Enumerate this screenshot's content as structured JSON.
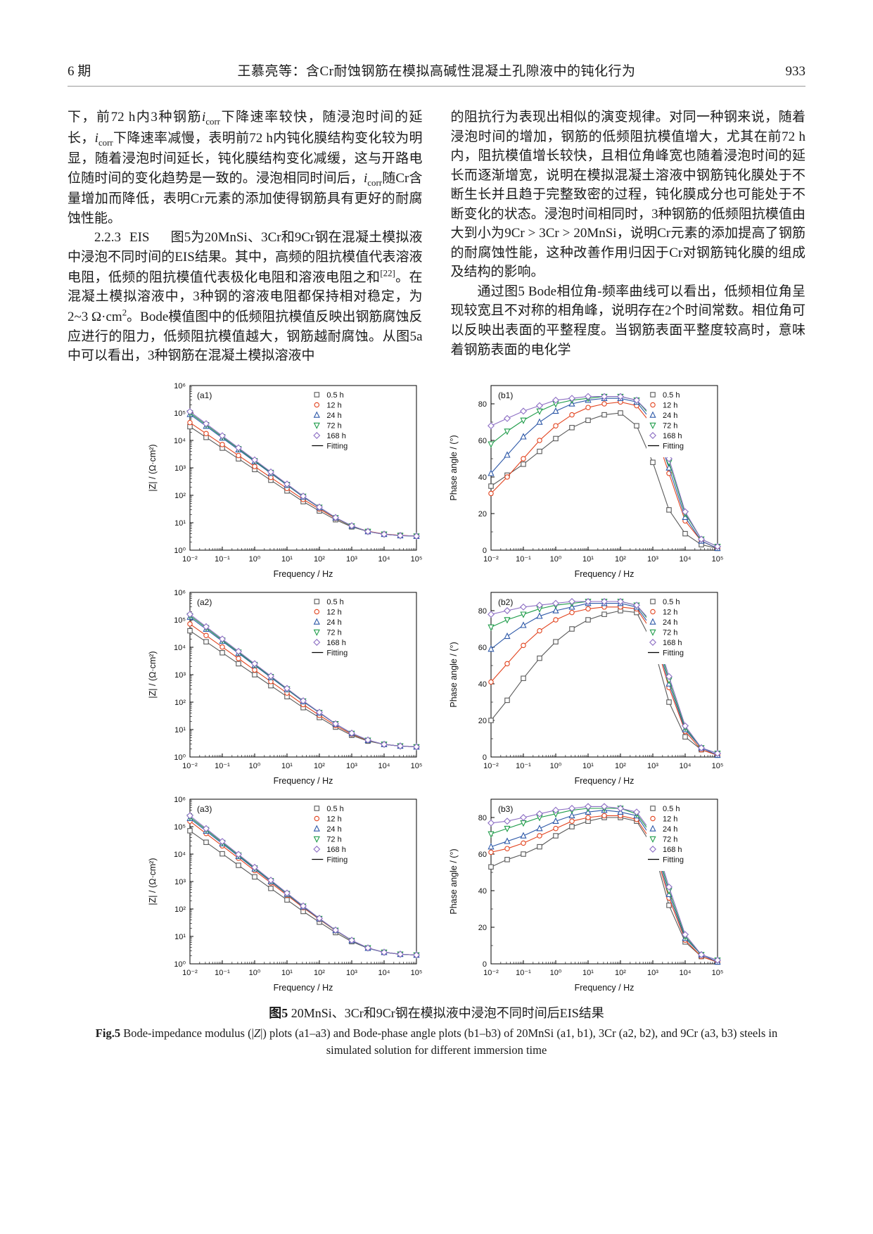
{
  "page": {
    "header": {
      "issue": "6 期",
      "title": "王慕亮等：含Cr耐蚀钢筋在模拟高碱性混凝土孔隙液中的钝化行为",
      "page_number": "933"
    },
    "body": {
      "left_column": {
        "p1": "下，前72 h内3种钢筋<i>i</i><sub>corr</sub>下降速率较快，随浸泡时间的延长，<i>i</i><sub>corr</sub>下降速率减慢，表明前72 h内钝化膜结构变化较为明显，随着浸泡时间延长，钝化膜结构变化减缓，这与开路电位随时间的变化趋势是一致的。浸泡相同时间后，<i>i</i><sub>corr</sub>随Cr含量增加而降低，表明Cr元素的添加使得钢筋具有更好的耐腐蚀性能。",
        "section_number": "2.2.3",
        "section_title": "EIS",
        "p2": "图5为20MnSi、3Cr和9Cr钢在混凝土模拟液中浸泡不同时间的EIS结果。其中，高频的阻抗模值代表溶液电阻，低频的阻抗模值代表极化电阻和溶液电阻之和<sup>[22]</sup>。在混凝土模拟溶液中，3种钢的溶液电阻都保持相对稳定，为2~3 Ω·cm<sup>2</sup>。Bode模值图中的低频阻抗模值反映出钢筋腐蚀反应进行的阻力，低频阻抗模值越大，钢筋越耐腐蚀。从图5a中可以看出，3种钢筋在混凝土模拟溶液中"
      },
      "right_column": {
        "p3": "的阻抗行为表现出相似的演变规律。对同一种钢来说，随着浸泡时间的增加，钢筋的低频阻抗模值增大，尤其在前72 h内，阻抗模值增长较快，且相位角峰宽也随着浸泡时间的延长而逐渐增宽，说明在模拟混凝土溶液中钢筋钝化膜处于不断生长并且趋于完整致密的过程，钝化膜成分也可能处于不断变化的状态。浸泡时间相同时，3种钢筋的低频阻抗模值由大到小为9Cr > 3Cr > 20MnSi，说明Cr元素的添加提高了钢筋的耐腐蚀性能，这种改善作用归因于Cr对钢筋钝化膜的组成及结构的影响。",
        "p4": "通过图5 Bode相位角-频率曲线可以看出，低频相位角呈现较宽且不对称的相角峰，说明存在2个时间常数。相位角可以反映出表面的平整程度。当钢筋表面平整度较高时，意味着钢筋表面的电化学"
      }
    },
    "figure": {
      "caption_zh_label": "图5",
      "caption_zh": "20MnSi、3Cr和9Cr钢在模拟液中浸泡不同时间后EIS结果",
      "caption_en_label": "Fig.5",
      "caption_en": "Bode-impedance modulus (|<i>Z</i>|) plots (a1–a3) and Bode-phase angle plots (b1–b3) of 20MnSi (a1, b1), 3Cr (a2, b2), and 9Cr (a3, b3) steels in simulated solution for different immersion time"
    }
  },
  "chart_data": [
    {
      "id": "a1",
      "panel": "(a1)",
      "type": "line",
      "steel": "20MnSi",
      "x_scale": "log",
      "y_scale": "log",
      "xlabel": "Frequency / Hz",
      "ylabel": "|Z| / (Ω·cm²)",
      "xlim": [
        -2,
        5
      ],
      "ylim": [
        0,
        6
      ],
      "x_ticks": [
        -2,
        -1,
        0,
        1,
        2,
        3,
        4,
        5
      ],
      "y_ticks": [
        0,
        1,
        2,
        3,
        4,
        5,
        6
      ],
      "x_values_are": "log10(frequency, Hz)",
      "y_values_are": "log10(|Z|, ohm·cm2)",
      "x": [
        -2,
        -1.5,
        -1,
        -0.5,
        0,
        0.5,
        1,
        1.5,
        2,
        2.5,
        3,
        3.5,
        4,
        4.5,
        5
      ],
      "series": [
        {
          "name": "0.5 h",
          "marker": "square",
          "color": "#595959",
          "y": [
            4.5,
            4.11,
            3.72,
            3.33,
            2.94,
            2.55,
            2.16,
            1.77,
            1.43,
            1.11,
            0.85,
            0.68,
            0.58,
            0.54,
            0.51
          ]
        },
        {
          "name": "12 h",
          "marker": "circle",
          "color": "#e2431e",
          "y": [
            4.65,
            4.25,
            3.85,
            3.45,
            3.05,
            2.65,
            2.25,
            1.85,
            1.5,
            1.16,
            0.88,
            0.69,
            0.59,
            0.54,
            0.51
          ]
        },
        {
          "name": "24 h",
          "marker": "triangle-up",
          "color": "#2e59a8",
          "y": [
            4.95,
            4.52,
            4.09,
            3.66,
            3.23,
            2.8,
            2.37,
            1.94,
            1.55,
            1.18,
            0.88,
            0.68,
            0.58,
            0.53,
            0.51
          ]
        },
        {
          "name": "72 h",
          "marker": "triangle-down",
          "color": "#1f9c4a",
          "y": [
            5.0,
            4.57,
            4.13,
            3.7,
            3.26,
            2.83,
            2.39,
            1.96,
            1.56,
            1.18,
            0.88,
            0.68,
            0.58,
            0.53,
            0.51
          ]
        },
        {
          "name": "168 h",
          "marker": "diamond",
          "color": "#8d6fc4",
          "y": [
            5.05,
            4.61,
            4.17,
            3.73,
            3.29,
            2.85,
            2.41,
            1.97,
            1.57,
            1.19,
            0.89,
            0.68,
            0.58,
            0.53,
            0.51
          ]
        }
      ],
      "fitting_label": "Fitting"
    },
    {
      "id": "b1",
      "panel": "(b1)",
      "type": "line",
      "steel": "20MnSi",
      "x_scale": "log",
      "y_scale": "linear",
      "xlabel": "Frequency / Hz",
      "ylabel": "Phase angle / (°)",
      "xlim": [
        -2,
        5
      ],
      "ylim": [
        0,
        90
      ],
      "x_ticks": [
        -2,
        -1,
        0,
        1,
        2,
        3,
        4,
        5
      ],
      "y_ticks": [
        0,
        20,
        40,
        60,
        80
      ],
      "x_values_are": "log10(frequency, Hz)",
      "y_values_are": "phase angle, deg",
      "x": [
        -2,
        -1.5,
        -1,
        -0.5,
        0,
        0.5,
        1,
        1.5,
        2,
        2.5,
        3,
        3.5,
        4,
        4.5,
        5
      ],
      "series": [
        {
          "name": "0.5 h",
          "marker": "square",
          "color": "#595959",
          "y": [
            35,
            41,
            47,
            54,
            61,
            67,
            71,
            74,
            75,
            68,
            48,
            22,
            9,
            3,
            1
          ]
        },
        {
          "name": "12 h",
          "marker": "circle",
          "color": "#e2431e",
          "y": [
            31,
            40,
            50,
            60,
            68,
            74,
            78,
            80,
            81,
            79,
            68,
            42,
            16,
            5,
            1
          ]
        },
        {
          "name": "24 h",
          "marker": "triangle-up",
          "color": "#2e59a8",
          "y": [
            42,
            52,
            62,
            70,
            76,
            80,
            82,
            83,
            83,
            81,
            70,
            45,
            18,
            5,
            1
          ]
        },
        {
          "name": "72 h",
          "marker": "triangle-down",
          "color": "#1f9c4a",
          "y": [
            58,
            65,
            71,
            76,
            80,
            82,
            83,
            84,
            84,
            82,
            72,
            48,
            20,
            6,
            2
          ]
        },
        {
          "name": "168 h",
          "marker": "diamond",
          "color": "#8d6fc4",
          "y": [
            68,
            72,
            76,
            79,
            82,
            83,
            84,
            84,
            84,
            82,
            73,
            50,
            21,
            6,
            2
          ]
        }
      ],
      "fitting_label": "Fitting"
    },
    {
      "id": "a2",
      "panel": "(a2)",
      "type": "line",
      "steel": "3Cr",
      "x_scale": "log",
      "y_scale": "log",
      "xlabel": "Frequency / Hz",
      "ylabel": "|Z| / (Ω·cm²)",
      "xlim": [
        -2,
        5
      ],
      "ylim": [
        0,
        6
      ],
      "x_ticks": [
        -2,
        -1,
        0,
        1,
        2,
        3,
        4,
        5
      ],
      "y_ticks": [
        0,
        1,
        2,
        3,
        4,
        5,
        6
      ],
      "x_values_are": "log10(frequency, Hz)",
      "y_values_are": "log10(|Z|, ohm·cm2)",
      "x": [
        -2,
        -1.5,
        -1,
        -0.5,
        0,
        0.5,
        1,
        1.5,
        2,
        2.5,
        3,
        3.5,
        4,
        4.5,
        5
      ],
      "series": [
        {
          "name": "0.5 h",
          "marker": "square",
          "color": "#595959",
          "y": [
            4.6,
            4.2,
            3.8,
            3.4,
            3.0,
            2.6,
            2.2,
            1.8,
            1.44,
            1.09,
            0.79,
            0.58,
            0.46,
            0.4,
            0.37
          ]
        },
        {
          "name": "12 h",
          "marker": "circle",
          "color": "#e2431e",
          "y": [
            4.85,
            4.43,
            4.01,
            3.59,
            3.17,
            2.75,
            2.33,
            1.91,
            1.52,
            1.15,
            0.83,
            0.6,
            0.46,
            0.4,
            0.37
          ]
        },
        {
          "name": "24 h",
          "marker": "triangle-up",
          "color": "#2e59a8",
          "y": [
            5.1,
            4.66,
            4.22,
            3.78,
            3.34,
            2.9,
            2.46,
            2.02,
            1.61,
            1.2,
            0.86,
            0.61,
            0.46,
            0.4,
            0.37
          ]
        },
        {
          "name": "72 h",
          "marker": "triangle-down",
          "color": "#1f9c4a",
          "y": [
            5.15,
            4.71,
            4.26,
            3.82,
            3.37,
            2.93,
            2.48,
            2.04,
            1.62,
            1.21,
            0.86,
            0.61,
            0.46,
            0.4,
            0.37
          ]
        },
        {
          "name": "168 h",
          "marker": "diamond",
          "color": "#8d6fc4",
          "y": [
            5.2,
            4.75,
            4.3,
            3.85,
            3.4,
            2.95,
            2.5,
            2.05,
            1.63,
            1.21,
            0.87,
            0.62,
            0.46,
            0.4,
            0.37
          ]
        }
      ],
      "fitting_label": "Fitting"
    },
    {
      "id": "b2",
      "panel": "(b2)",
      "type": "line",
      "steel": "3Cr",
      "x_scale": "log",
      "y_scale": "linear",
      "xlabel": "Frequency / Hz",
      "ylabel": "Phase angle / (°)",
      "xlim": [
        -2,
        5
      ],
      "ylim": [
        0,
        90
      ],
      "x_ticks": [
        -2,
        -1,
        0,
        1,
        2,
        3,
        4,
        5
      ],
      "y_ticks": [
        0,
        20,
        40,
        60,
        80
      ],
      "x_values_are": "log10(frequency, Hz)",
      "y_values_are": "phase angle, deg",
      "x": [
        -2,
        -1.5,
        -1,
        -0.5,
        0,
        0.5,
        1,
        1.5,
        2,
        2.5,
        3,
        3.5,
        4,
        4.5,
        5
      ],
      "series": [
        {
          "name": "0.5 h",
          "marker": "square",
          "color": "#595959",
          "y": [
            20,
            31,
            43,
            54,
            63,
            70,
            75,
            78,
            80,
            79,
            62,
            30,
            11,
            4,
            1
          ]
        },
        {
          "name": "12 h",
          "marker": "circle",
          "color": "#e2431e",
          "y": [
            41,
            51,
            61,
            69,
            75,
            79,
            81,
            82,
            82,
            81,
            68,
            38,
            14,
            4,
            1
          ]
        },
        {
          "name": "24 h",
          "marker": "triangle-up",
          "color": "#2e59a8",
          "y": [
            59,
            66,
            72,
            77,
            80,
            82,
            84,
            84,
            84,
            82,
            70,
            40,
            15,
            5,
            1
          ]
        },
        {
          "name": "72 h",
          "marker": "triangle-down",
          "color": "#1f9c4a",
          "y": [
            71,
            75,
            78,
            81,
            83,
            84,
            85,
            85,
            85,
            83,
            72,
            42,
            16,
            5,
            2
          ]
        },
        {
          "name": "168 h",
          "marker": "diamond",
          "color": "#8d6fc4",
          "y": [
            78,
            80,
            82,
            83,
            84,
            85,
            85,
            85,
            85,
            83,
            73,
            44,
            17,
            5,
            2
          ]
        }
      ],
      "fitting_label": "Fitting"
    },
    {
      "id": "a3",
      "panel": "(a3)",
      "type": "line",
      "steel": "9Cr",
      "x_scale": "log",
      "y_scale": "log",
      "xlabel": "Frequency / Hz",
      "ylabel": "|Z| / (Ω·cm²)",
      "xlim": [
        -2,
        5
      ],
      "ylim": [
        0,
        6
      ],
      "x_ticks": [
        -2,
        -1,
        0,
        1,
        2,
        3,
        4,
        5
      ],
      "y_ticks": [
        0,
        1,
        2,
        3,
        4,
        5,
        6
      ],
      "x_values_are": "log10(frequency, Hz)",
      "y_values_are": "log10(|Z|, ohm·cm2)",
      "x": [
        -2,
        -1.5,
        -1,
        -0.5,
        0,
        0.5,
        1,
        1.5,
        2,
        2.5,
        3,
        3.5,
        4,
        4.5,
        5
      ],
      "series": [
        {
          "name": "0.5 h",
          "marker": "square",
          "color": "#595959",
          "y": [
            4.85,
            4.43,
            4.01,
            3.59,
            3.17,
            2.75,
            2.33,
            1.91,
            1.52,
            1.14,
            0.81,
            0.57,
            0.42,
            0.35,
            0.32
          ]
        },
        {
          "name": "12 h",
          "marker": "circle",
          "color": "#e2431e",
          "y": [
            5.2,
            4.75,
            4.3,
            3.85,
            3.4,
            2.95,
            2.5,
            2.05,
            1.62,
            1.21,
            0.85,
            0.58,
            0.42,
            0.35,
            0.32
          ]
        },
        {
          "name": "24 h",
          "marker": "triangle-up",
          "color": "#2e59a8",
          "y": [
            5.3,
            4.84,
            4.38,
            3.92,
            3.46,
            3.0,
            2.54,
            2.08,
            1.64,
            1.22,
            0.85,
            0.57,
            0.42,
            0.35,
            0.32
          ]
        },
        {
          "name": "72 h",
          "marker": "triangle-down",
          "color": "#1f9c4a",
          "y": [
            5.35,
            4.89,
            4.42,
            3.96,
            3.49,
            3.03,
            2.56,
            2.1,
            1.65,
            1.22,
            0.85,
            0.58,
            0.42,
            0.35,
            0.32
          ]
        },
        {
          "name": "168 h",
          "marker": "diamond",
          "color": "#8d6fc4",
          "y": [
            5.4,
            4.93,
            4.46,
            3.99,
            3.52,
            3.05,
            2.58,
            2.11,
            1.66,
            1.23,
            0.86,
            0.58,
            0.42,
            0.35,
            0.32
          ]
        }
      ],
      "fitting_label": "Fitting"
    },
    {
      "id": "b3",
      "panel": "(b3)",
      "type": "line",
      "steel": "9Cr",
      "x_scale": "log",
      "y_scale": "linear",
      "xlabel": "Frequency / Hz",
      "ylabel": "Phase angle / (°)",
      "xlim": [
        -2,
        5
      ],
      "ylim": [
        0,
        90
      ],
      "x_ticks": [
        -2,
        -1,
        0,
        1,
        2,
        3,
        4,
        5
      ],
      "y_ticks": [
        0,
        20,
        40,
        60,
        80
      ],
      "x_values_are": "log10(frequency, Hz)",
      "y_values_are": "phase angle, deg",
      "x": [
        -2,
        -1.5,
        -1,
        -0.5,
        0,
        0.5,
        1,
        1.5,
        2,
        2.5,
        3,
        3.5,
        4,
        4.5,
        5
      ],
      "series": [
        {
          "name": "0.5 h",
          "marker": "square",
          "color": "#595959",
          "y": [
            53,
            57,
            60,
            64,
            70,
            75,
            78,
            80,
            80,
            78,
            64,
            32,
            12,
            4,
            1
          ]
        },
        {
          "name": "12 h",
          "marker": "circle",
          "color": "#e2431e",
          "y": [
            61,
            63,
            66,
            70,
            74,
            78,
            80,
            81,
            81,
            79,
            66,
            36,
            13,
            4,
            1
          ]
        },
        {
          "name": "24 h",
          "marker": "triangle-up",
          "color": "#2e59a8",
          "y": [
            64,
            67,
            70,
            74,
            78,
            81,
            83,
            84,
            83,
            81,
            68,
            38,
            14,
            5,
            1
          ]
        },
        {
          "name": "72 h",
          "marker": "triangle-down",
          "color": "#1f9c4a",
          "y": [
            71,
            74,
            77,
            80,
            82,
            84,
            85,
            85,
            85,
            82,
            70,
            40,
            15,
            5,
            2
          ]
        },
        {
          "name": "168 h",
          "marker": "diamond",
          "color": "#8d6fc4",
          "y": [
            77,
            78,
            80,
            82,
            84,
            85,
            86,
            86,
            85,
            83,
            71,
            42,
            16,
            5,
            2
          ]
        }
      ],
      "fitting_label": "Fitting"
    }
  ]
}
